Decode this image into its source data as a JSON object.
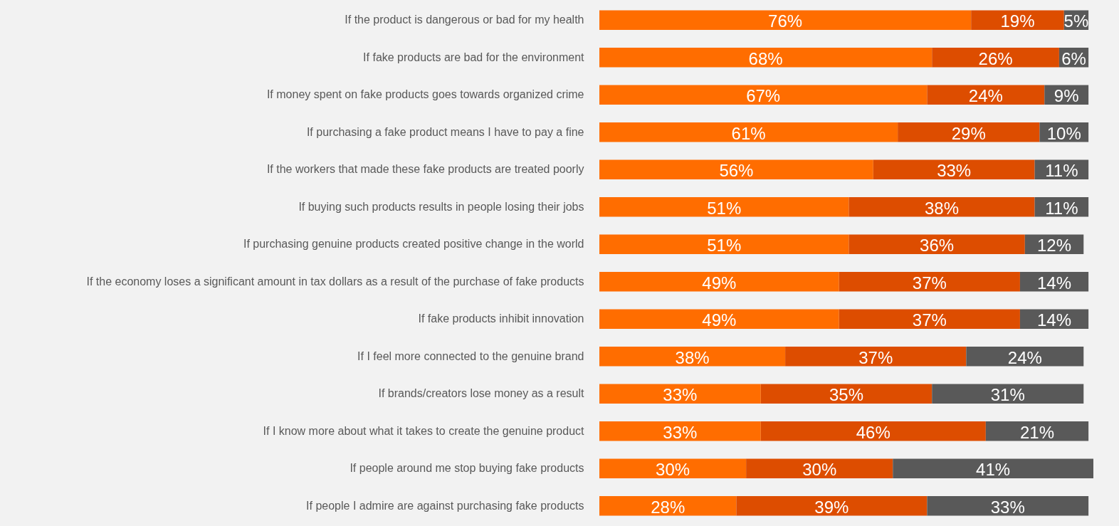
{
  "chart_data": {
    "type": "bar",
    "orientation": "horizontal",
    "stacked": true,
    "tick_labels": "y",
    "categories": [
      "If the product is dangerous or bad for my health",
      "If fake products are bad for the environment",
      "If money spent on fake products goes towards organized crime",
      "If purchasing a fake product means I have to pay a fine",
      "If the workers that made these fake products are treated poorly",
      "If buying such products results in people losing their jobs",
      "If purchasing genuine products created positive change in the world",
      "If the economy loses a significant amount in tax dollars as a result of the purchase of fake products",
      "If fake products inhibit innovation",
      "If I feel more connected to the genuine brand",
      "If brands/creators lose money as a result",
      "If I know more about what it takes to create the genuine product",
      "If people around me stop buying fake products",
      "If people I admire are against purchasing fake products"
    ],
    "series": [
      {
        "color": "#ff6d00",
        "values": [
          76,
          68,
          67,
          61,
          56,
          51,
          51,
          49,
          49,
          38,
          33,
          33,
          30,
          28
        ],
        "value_labels": [
          "76%",
          "68%",
          "67%",
          "61%",
          "56%",
          "51%",
          "51%",
          "49%",
          "49%",
          "38%",
          "33%",
          "33%",
          "30%",
          "28%"
        ]
      },
      {
        "color": "#dd4d00",
        "values": [
          19,
          26,
          24,
          29,
          33,
          38,
          36,
          37,
          37,
          37,
          35,
          46,
          30,
          39
        ],
        "value_labels": [
          "19%",
          "26%",
          "24%",
          "29%",
          "33%",
          "38%",
          "36%",
          "37%",
          "37%",
          "37%",
          "35%",
          "46%",
          "30%",
          "39%"
        ]
      },
      {
        "color": "#595959",
        "values": [
          5,
          6,
          9,
          10,
          11,
          11,
          12,
          14,
          14,
          24,
          31,
          21,
          41,
          33
        ],
        "value_labels": [
          "5%",
          "6%",
          "9%",
          "10%",
          "11%",
          "11%",
          "12%",
          "14%",
          "14%",
          "24%",
          "31%",
          "21%",
          "41%",
          "33%"
        ]
      }
    ]
  }
}
